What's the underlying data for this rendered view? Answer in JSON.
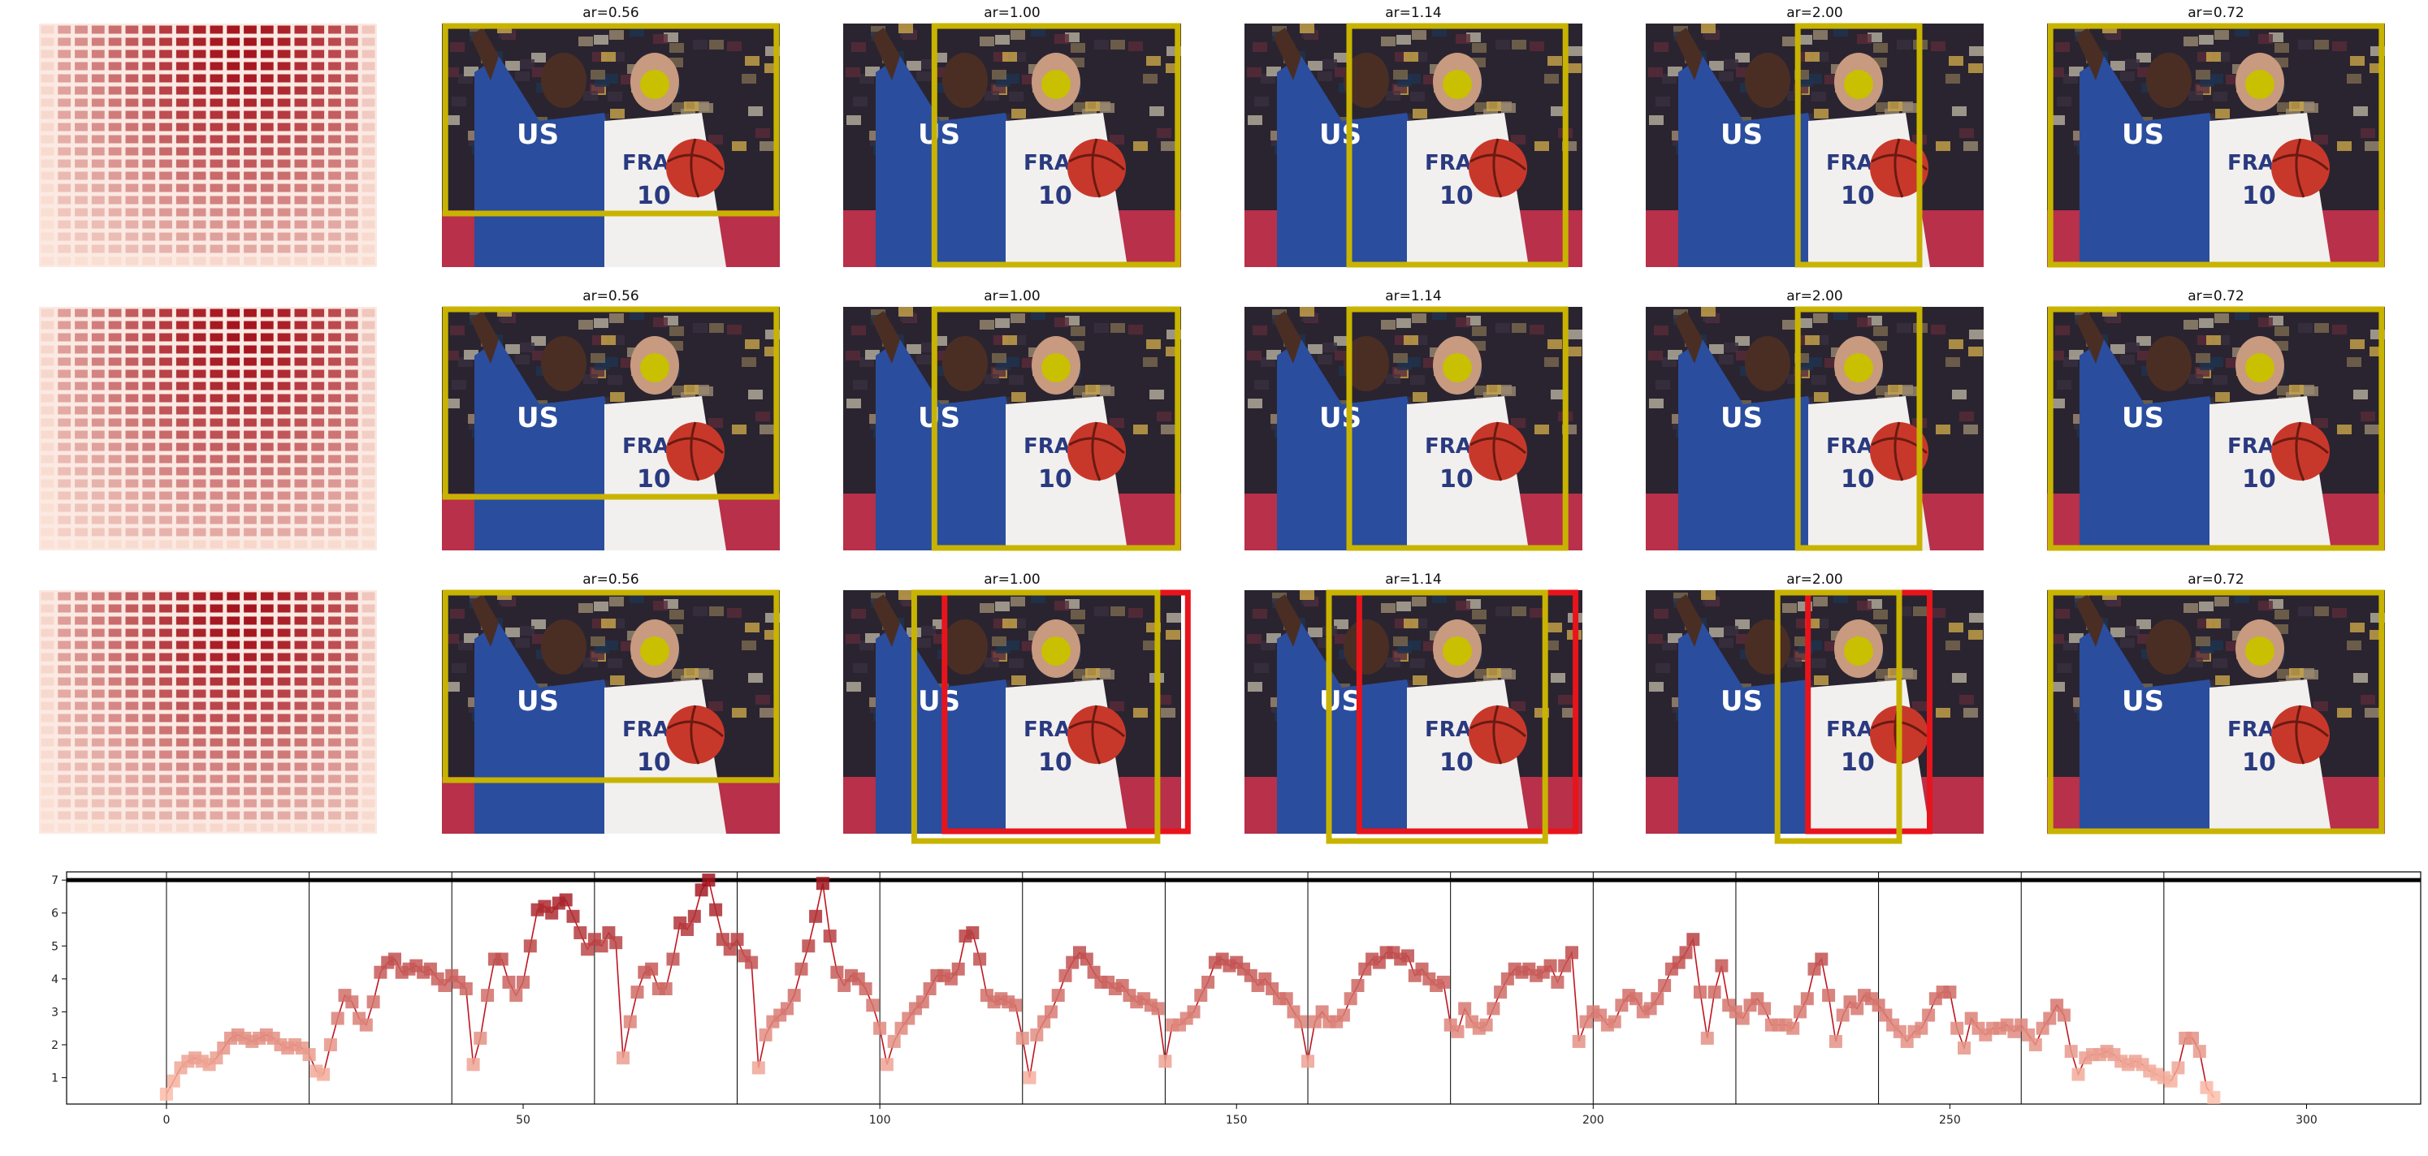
{
  "figure": {
    "rows": [
      {
        "titles": [
          "",
          "ar=0.56",
          "ar=1.00",
          "ar=1.14",
          "ar=2.00",
          "ar=0.72"
        ]
      },
      {
        "titles": [
          "",
          "ar=0.56",
          "ar=1.00",
          "ar=1.14",
          "ar=2.00",
          "ar=0.72"
        ]
      },
      {
        "titles": [
          "",
          "ar=0.56",
          "ar=1.00",
          "ar=1.14",
          "ar=2.00",
          "ar=0.72"
        ]
      }
    ],
    "colors": {
      "crop_box": "#c8b400",
      "alt_box": "#e8141c",
      "point": "#c8c000",
      "line": "#c0151f"
    }
  },
  "chart_data": {
    "type": "line",
    "title": "",
    "xlabel": "",
    "ylabel": "",
    "xlim": [
      -14,
      316
    ],
    "ylim": [
      0.2,
      7.25
    ],
    "xticks": [
      0,
      50,
      100,
      150,
      200,
      250,
      300
    ],
    "yticks": [
      1,
      2,
      3,
      4,
      5,
      6,
      7
    ],
    "threshold_line": 7,
    "segment_boundaries": [
      0,
      20,
      40,
      60,
      80,
      100,
      120,
      140,
      160,
      180,
      200,
      220,
      240,
      260,
      280
    ],
    "grid": false,
    "legend": "none",
    "series": [
      {
        "values": [
          0.5,
          0.9,
          1.3,
          1.5,
          1.6,
          1.5,
          1.4,
          1.6,
          1.9,
          2.2,
          2.3,
          2.2,
          2.1,
          2.2,
          2.3,
          2.2,
          2.0,
          1.9,
          2.0,
          1.9,
          1.7,
          1.2,
          1.1,
          2.0,
          2.8,
          3.5,
          3.3,
          2.8,
          2.6,
          3.3,
          4.2,
          4.5,
          4.6,
          4.2,
          4.3,
          4.4,
          4.2,
          4.3,
          4.0,
          3.8,
          4.1,
          3.9,
          3.7,
          1.4,
          2.2,
          3.5,
          4.6,
          4.6,
          3.9,
          3.5,
          3.9,
          5.0,
          6.1,
          6.2,
          6.0,
          6.3,
          6.4,
          5.9,
          5.4,
          4.9,
          5.2,
          5.0,
          5.4,
          5.1,
          1.6,
          2.7,
          3.6,
          4.2,
          4.3,
          3.7,
          3.7,
          4.6,
          5.7,
          5.5,
          5.9,
          6.7,
          7.0,
          6.1,
          5.2,
          4.9,
          5.2,
          4.7,
          4.5,
          1.3,
          2.3,
          2.7,
          2.9,
          3.1,
          3.5,
          4.3,
          5.0,
          5.9,
          6.9,
          5.3,
          4.2,
          3.8,
          4.1,
          4.0,
          3.7,
          3.2,
          2.5,
          1.4,
          2.1,
          2.5,
          2.8,
          3.1,
          3.3,
          3.7,
          4.1,
          4.1,
          4.0,
          4.3,
          5.3,
          5.4,
          4.6,
          3.5,
          3.3,
          3.4,
          3.3,
          3.2,
          2.2,
          1.0,
          2.3,
          2.7,
          3.0,
          3.5,
          4.1,
          4.5,
          4.8,
          4.6,
          4.2,
          3.9,
          3.9,
          3.7,
          3.8,
          3.5,
          3.3,
          3.4,
          3.2,
          3.1,
          1.5,
          2.6,
          2.6,
          2.8,
          3.0,
          3.5,
          3.9,
          4.5,
          4.6,
          4.4,
          4.5,
          4.3,
          4.1,
          3.8,
          4.0,
          3.7,
          3.4,
          3.4,
          3.0,
          2.7,
          1.5,
          2.7,
          3.0,
          2.7,
          2.7,
          2.9,
          3.4,
          3.8,
          4.3,
          4.6,
          4.5,
          4.8,
          4.8,
          4.6,
          4.7,
          4.1,
          4.3,
          4.0,
          3.8,
          3.9,
          2.6,
          2.4,
          3.1,
          2.7,
          2.5,
          2.6,
          3.1,
          3.6,
          4.0,
          4.3,
          4.2,
          4.3,
          4.1,
          4.2,
          4.4,
          3.9,
          4.4,
          4.8,
          2.1,
          2.7,
          3.0,
          2.9,
          2.6,
          2.7,
          3.2,
          3.5,
          3.4,
          3.0,
          3.1,
          3.4,
          3.8,
          4.3,
          4.5,
          4.8,
          5.2,
          3.6,
          2.2,
          3.6,
          4.4,
          3.2,
          3.0,
          2.8,
          3.2,
          3.4,
          3.1,
          2.6,
          2.6,
          2.6,
          2.5,
          3.0,
          3.4,
          4.3,
          4.6,
          3.5,
          2.1,
          2.9,
          3.3,
          3.1,
          3.5,
          3.4,
          3.2,
          2.9,
          2.6,
          2.4,
          2.1,
          2.4,
          2.5,
          2.9,
          3.4,
          3.6,
          3.6,
          2.5,
          1.9,
          2.8,
          2.5,
          2.3,
          2.5,
          2.5,
          2.6,
          2.4,
          2.6,
          2.3,
          2.0,
          2.5,
          2.8,
          3.2,
          2.9,
          1.8,
          1.1,
          1.6,
          1.7,
          1.7,
          1.8,
          1.7,
          1.5,
          1.4,
          1.5,
          1.4,
          1.2,
          1.1,
          1.0,
          0.9,
          1.3,
          2.2,
          2.2,
          1.8,
          0.7,
          0.4
        ]
      }
    ]
  }
}
